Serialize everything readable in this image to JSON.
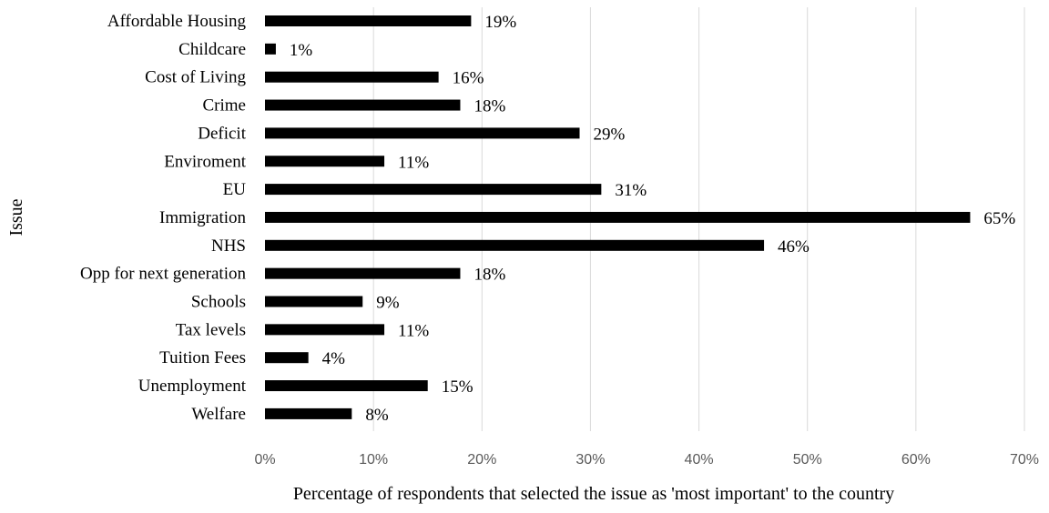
{
  "chart_data": {
    "type": "bar",
    "orientation": "horizontal",
    "categories": [
      "Affordable Housing",
      "Childcare",
      "Cost of Living",
      "Crime",
      "Deficit",
      "Enviroment",
      "EU",
      "Immigration",
      "NHS",
      "Opp for next generation",
      "Schools",
      "Tax levels",
      "Tuition Fees",
      "Unemployment",
      "Welfare"
    ],
    "values": [
      19,
      1,
      16,
      18,
      29,
      11,
      31,
      65,
      46,
      18,
      9,
      11,
      4,
      15,
      8
    ],
    "data_labels": [
      "19%",
      "1%",
      "16%",
      "18%",
      "29%",
      "11%",
      "31%",
      "65%",
      "46%",
      "18%",
      "9%",
      "11%",
      "4%",
      "15%",
      "8%"
    ],
    "xlim": [
      0,
      70
    ],
    "x_ticks": [
      0,
      10,
      20,
      30,
      40,
      50,
      60,
      70
    ],
    "x_tick_labels": [
      "0%",
      "10%",
      "20%",
      "30%",
      "40%",
      "50%",
      "60%",
      "70%"
    ],
    "xlabel": "Percentage of respondents that selected the issue as 'most important' to the country",
    "ylabel": "Issue",
    "grid": true,
    "colors": {
      "bar": "#000000",
      "grid": "#d9d9d9",
      "tick_text": "#595959"
    }
  }
}
